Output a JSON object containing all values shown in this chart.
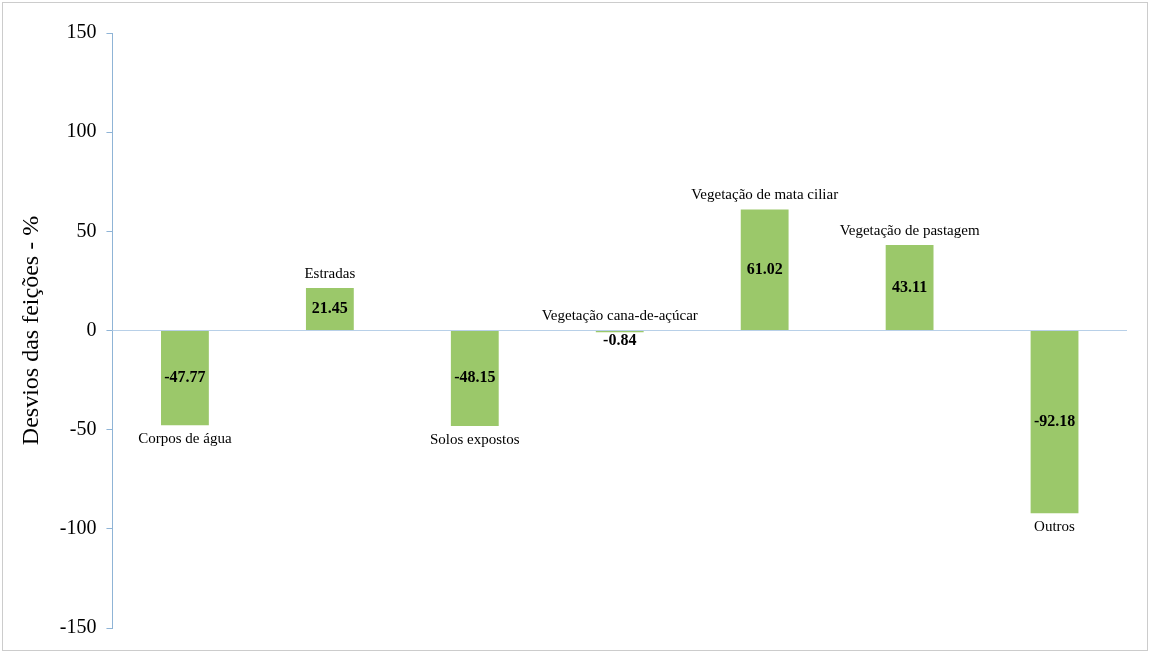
{
  "chart_data": {
    "type": "bar",
    "ylabel": "Desvios das feições - %",
    "categories": [
      "Corpos de água",
      "Estradas",
      "Solos expostos",
      "Vegetação cana-de-açúcar",
      "Vegetação de mata ciliar",
      "Vegetação de pastagem",
      "Outros"
    ],
    "values": [
      -47.77,
      21.45,
      -48.15,
      -0.84,
      61.02,
      43.11,
      -92.18
    ],
    "color": "#9bc86a",
    "data_labels": true,
    "ylim": [
      -150,
      150
    ],
    "yticks": [
      -150,
      -100,
      -50,
      0,
      50,
      100,
      150
    ],
    "grid": false,
    "legend": false,
    "ref_lines": [
      {
        "axis": "y",
        "value": 0,
        "color": "#b8d0e8"
      }
    ]
  }
}
